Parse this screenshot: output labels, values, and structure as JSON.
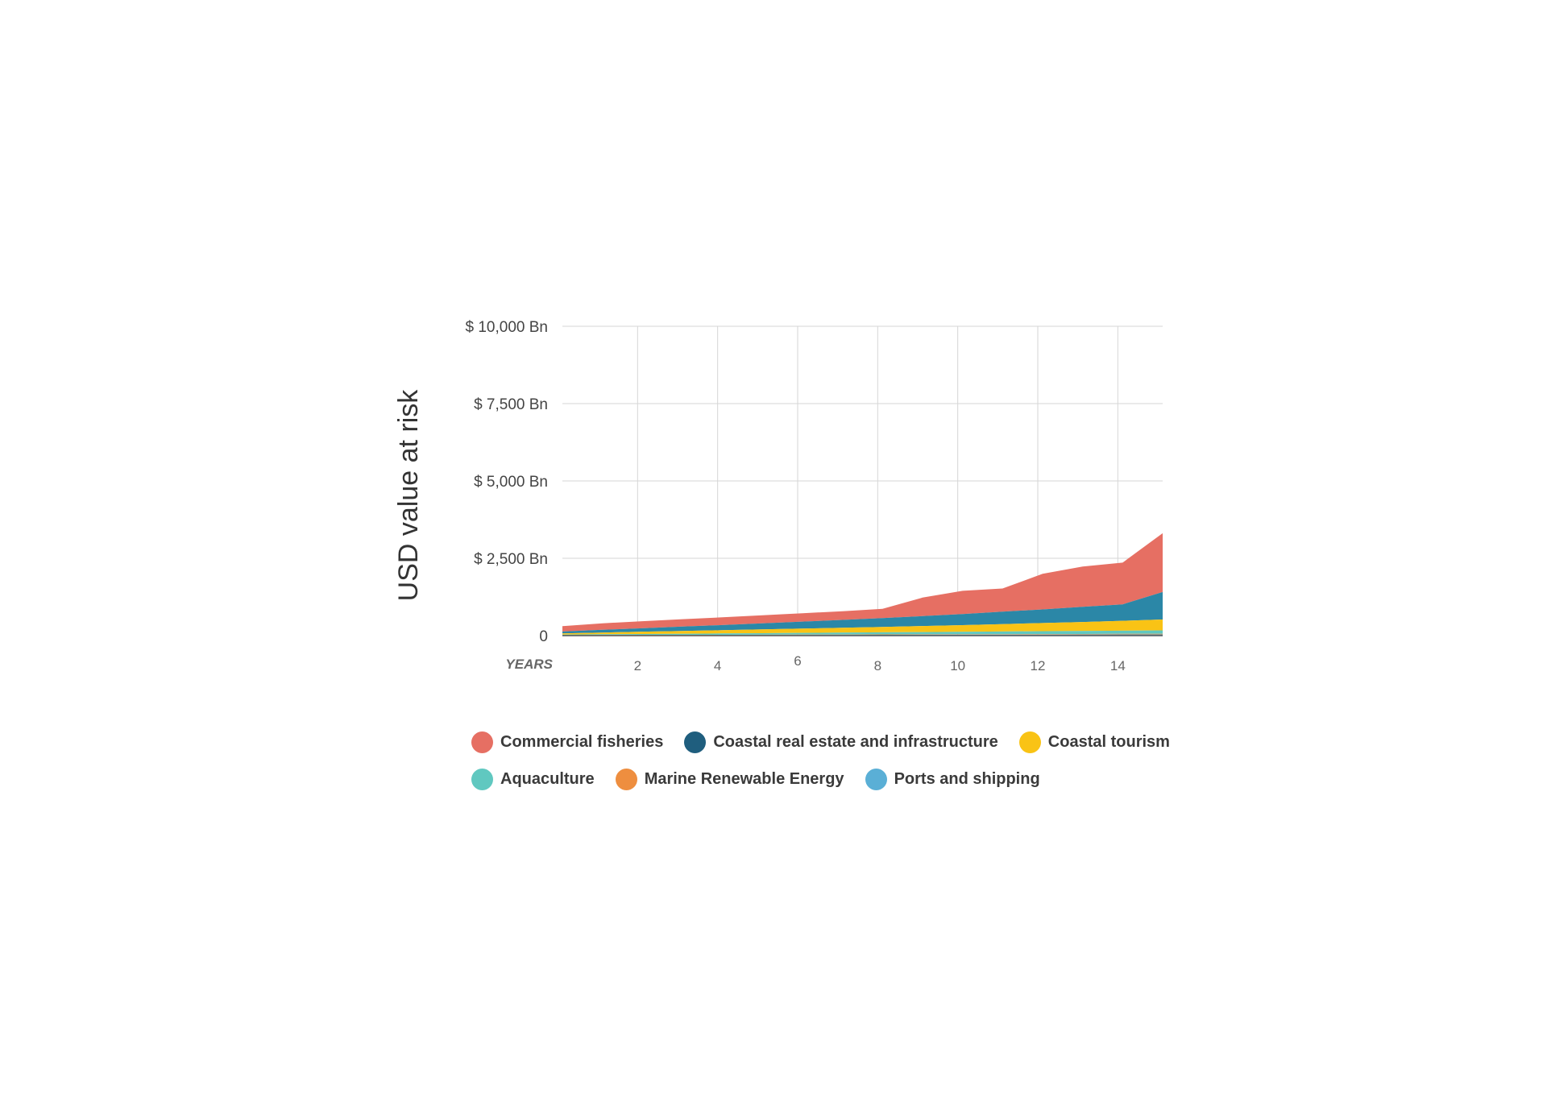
{
  "chart_data": {
    "type": "area",
    "stacked": true,
    "ylabel": "USD value at risk",
    "xlabel": "YEARS",
    "x": [
      0,
      1,
      2,
      3,
      4,
      5,
      6,
      7,
      8,
      9,
      10,
      11,
      12,
      13,
      14,
      15
    ],
    "x_ticks": [
      2,
      4,
      6,
      8,
      10,
      12,
      14
    ],
    "xlim": [
      0,
      15
    ],
    "ylim": [
      0,
      10000
    ],
    "y_ticks": [
      0,
      2500,
      5000,
      7500,
      10000
    ],
    "y_tick_labels": [
      "0",
      "$ 2,500 Bn",
      "$ 5,000 Bn",
      "$ 7,500 Bn",
      "$ 10,000 Bn"
    ],
    "grid": true,
    "legend_position": "bottom",
    "series": [
      {
        "name": "Ports and shipping",
        "color": "#5AAFD6",
        "values": [
          10,
          12,
          14,
          16,
          18,
          20,
          22,
          24,
          26,
          28,
          30,
          32,
          34,
          36,
          38,
          40
        ]
      },
      {
        "name": "Marine Renewable Energy",
        "color": "#EE8E3F",
        "values": [
          4,
          5,
          6,
          7,
          8,
          9,
          10,
          11,
          12,
          13,
          14,
          15,
          16,
          17,
          18,
          20
        ]
      },
      {
        "name": "Aquaculture",
        "color": "#60C8C0",
        "values": [
          20,
          26,
          32,
          38,
          44,
          50,
          56,
          62,
          68,
          74,
          80,
          86,
          92,
          98,
          104,
          110
        ]
      },
      {
        "name": "Coastal tourism",
        "color": "#F9C315",
        "values": [
          40,
          55,
          75,
          90,
          105,
          125,
          140,
          155,
          175,
          195,
          215,
          240,
          265,
          290,
          320,
          350
        ]
      },
      {
        "name": "Coastal real estate and infrastructure",
        "color": "#2B87A7",
        "values": [
          60,
          90,
          110,
          140,
          165,
          195,
          225,
          255,
          285,
          320,
          360,
          400,
          440,
          490,
          530,
          890
        ]
      },
      {
        "name": "Commercial fisheries",
        "color": "#E66F63",
        "values": [
          170,
          210,
          230,
          240,
          250,
          260,
          270,
          280,
          300,
          600,
          750,
          750,
          1150,
          1300,
          1350,
          1900
        ]
      }
    ]
  },
  "legend": {
    "rows": [
      [
        {
          "label": "Commercial fisheries",
          "color": "#E66F63",
          "icon": "red-dot-icon"
        },
        {
          "label": "Coastal real estate and infrastructure",
          "color": "#1F5E7E",
          "icon": "dark-blue-dot-icon"
        },
        {
          "label": "Coastal tourism",
          "color": "#F9C315",
          "icon": "yellow-dot-icon"
        }
      ],
      [
        {
          "label": "Aquaculture",
          "color": "#60C8C0",
          "icon": "teal-dot-icon"
        },
        {
          "label": "Marine Renewable Energy",
          "color": "#EE8E3F",
          "icon": "orange-dot-icon"
        },
        {
          "label": "Ports and shipping",
          "color": "#5AAFD6",
          "icon": "blue-dot-icon"
        }
      ]
    ]
  }
}
